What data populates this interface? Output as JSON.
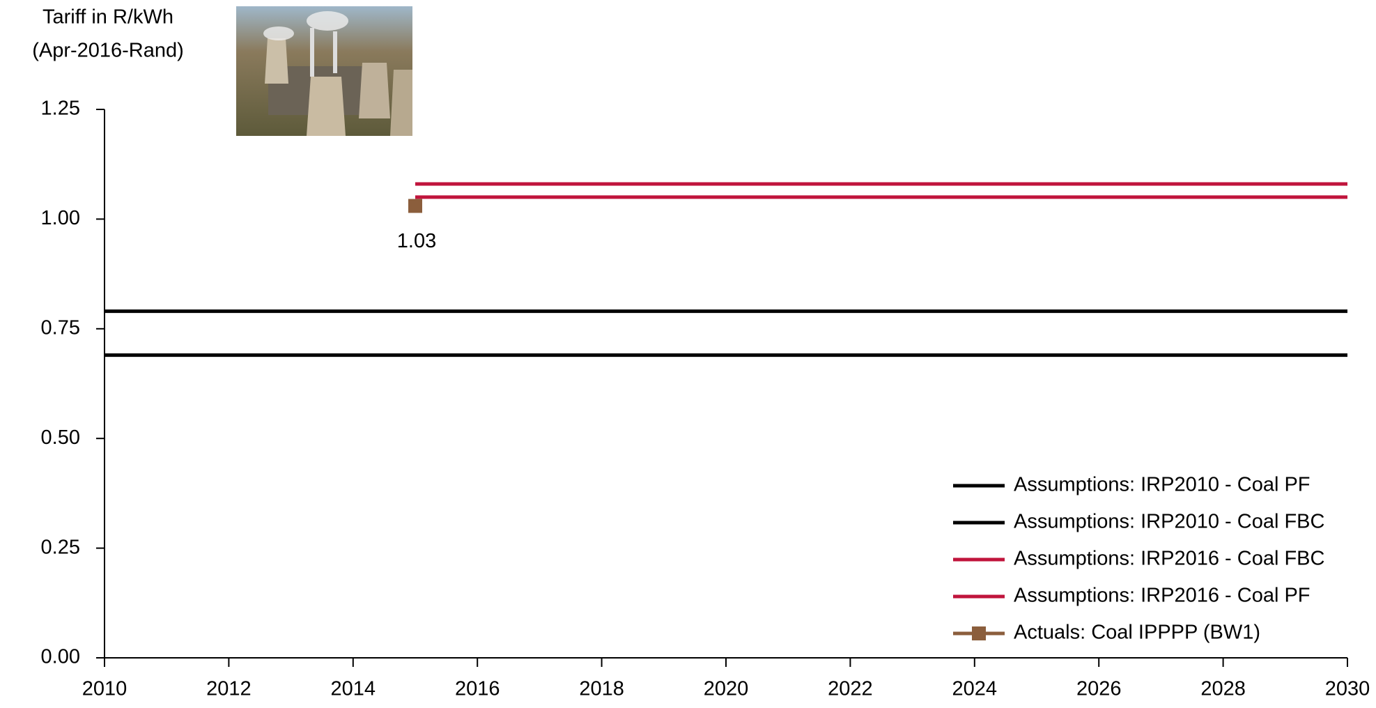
{
  "chart_data": {
    "type": "line",
    "y_label": [
      "Tariff in R/kWh",
      "(Apr-2016-Rand)"
    ],
    "xlim": [
      2010,
      2030
    ],
    "xticks": [
      2010,
      2012,
      2014,
      2016,
      2018,
      2020,
      2022,
      2024,
      2026,
      2028,
      2030
    ],
    "ylim": [
      0,
      1.25
    ],
    "yticks": [
      {
        "value": 0,
        "label": "0.00"
      },
      0.25,
      {
        "value": 0.5,
        "label": "0.50"
      },
      0.75,
      {
        "value": 1,
        "label": "1.00"
      },
      1.25
    ],
    "legend": "lower right",
    "series": [
      {
        "name": "Assumptions: IRP2010 - Coal PF",
        "color": "#000000",
        "x": [
          2010,
          2030
        ],
        "values": [
          0.79,
          0.79
        ]
      },
      {
        "name": "Assumptions: IRP2010 - Coal FBC",
        "color": "#000000",
        "x": [
          2010,
          2030
        ],
        "values": [
          0.69,
          0.69
        ]
      },
      {
        "name": "Assumptions: IRP2016 - Coal FBC",
        "color": "#c0143c",
        "x": [
          2015,
          2030
        ],
        "values": [
          1.08,
          1.08
        ]
      },
      {
        "name": "Assumptions: IRP2016 - Coal PF",
        "color": "#c0143c",
        "x": [
          2015,
          2030
        ],
        "values": [
          1.05,
          1.05
        ]
      },
      {
        "name": "Actuals: Coal IPPPP (BW1)",
        "color": "#8b5e3c",
        "marker": "square",
        "x": [
          2015
        ],
        "values": [
          1.03
        ]
      }
    ]
  }
}
